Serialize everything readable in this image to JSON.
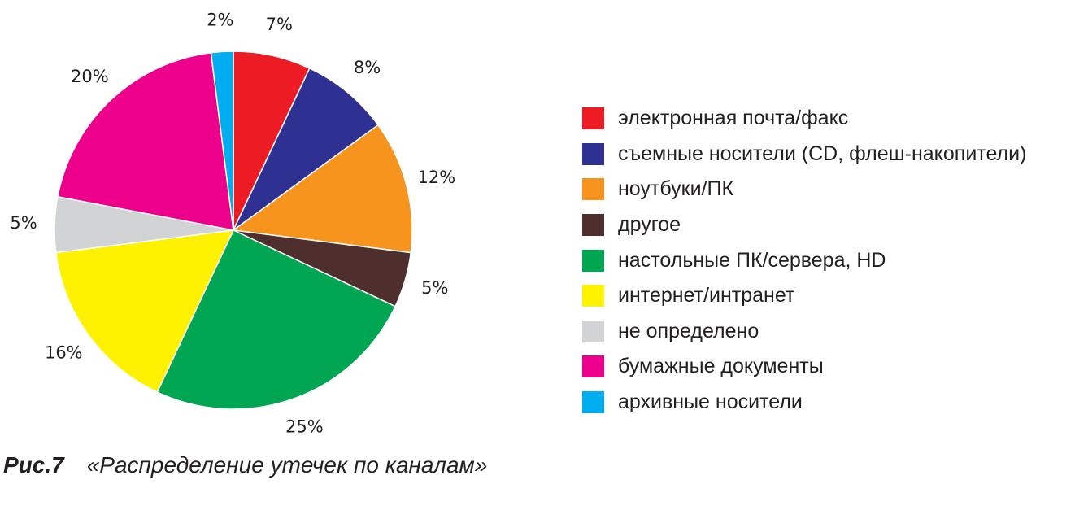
{
  "chart_data": {
    "type": "pie",
    "slices": [
      {
        "label": "электронная почта/факс",
        "value": 7,
        "value_label": "7%",
        "color": "#ed1c24"
      },
      {
        "label": "съемные носители (CD, флеш-накопители)",
        "value": 8,
        "value_label": "8%",
        "color": "#2e3192"
      },
      {
        "label": "ноутбуки/ПК",
        "value": 12,
        "value_label": "12%",
        "color": "#f7941d"
      },
      {
        "label": "другое",
        "value": 5,
        "value_label": "5%",
        "color": "#4f2e2e"
      },
      {
        "label": "настольные ПК/сервера, HD",
        "value": 25,
        "value_label": "25%",
        "color": "#00a651"
      },
      {
        "label": "интернет/интранет",
        "value": 16,
        "value_label": "16%",
        "color": "#fff200"
      },
      {
        "label": "не определено",
        "value": 5,
        "value_label": "5%",
        "color": "#d1d3d4"
      },
      {
        "label": "бумажные документы",
        "value": 20,
        "value_label": "20%",
        "color": "#ec008c"
      },
      {
        "label": "архивные носители",
        "value": 2,
        "value_label": "2%",
        "color": "#00aeef"
      }
    ],
    "legend_position": "right"
  },
  "caption": {
    "figure": "Рис.7",
    "text": "«Распределение утечек по каналам»"
  }
}
